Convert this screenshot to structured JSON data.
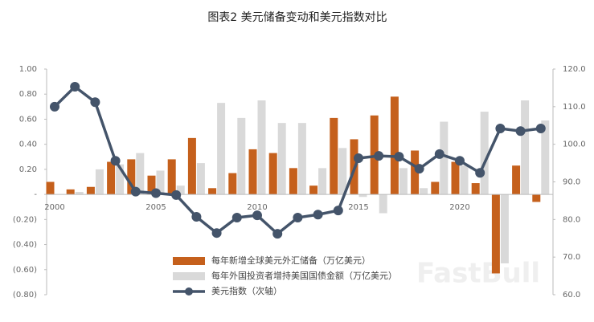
{
  "chart_data": {
    "type": "bar",
    "title": "图表2 美元储备变动和美元指数对比",
    "watermark": "FastBull",
    "categories": [
      "2000",
      null,
      null,
      null,
      null,
      "2005",
      null,
      null,
      null,
      null,
      "2010",
      null,
      null,
      null,
      null,
      "2015",
      null,
      null,
      null,
      null,
      "2020",
      null,
      null,
      null,
      null
    ],
    "series": [
      {
        "name": "每年新增全球美元外汇储备（万亿美元）",
        "type": "bar",
        "color": "#c5601c",
        "values": [
          0.1,
          0.04,
          0.06,
          0.26,
          0.28,
          0.15,
          0.28,
          0.45,
          0.05,
          0.17,
          0.36,
          0.33,
          0.21,
          0.07,
          0.61,
          0.44,
          0.63,
          0.78,
          0.35,
          0.1,
          0.26,
          0.09,
          -0.63,
          0.23,
          -0.06
        ]
      },
      {
        "name": "每年外国投资者增持美国国债金额（万亿美元）",
        "type": "bar",
        "color": "#d9d9d9",
        "values": [
          0,
          0.02,
          0.2,
          0.24,
          0.33,
          0.19,
          0.07,
          0.25,
          0.73,
          0.61,
          0.75,
          0.57,
          0.57,
          0.21,
          0.37,
          -0.02,
          -0.15,
          0.21,
          0.05,
          0.58,
          0.23,
          0.66,
          -0.55,
          0.75,
          0.59
        ]
      },
      {
        "name": "美元指数（次轴）",
        "type": "line",
        "axis": "y2",
        "color": "#44546a",
        "values": [
          110.0,
          115.3,
          111.2,
          95.6,
          87.4,
          87.0,
          86.5,
          80.7,
          76.4,
          80.5,
          81.1,
          76.2,
          80.5,
          81.3,
          82.4,
          96.3,
          96.9,
          96.7,
          93.5,
          97.4,
          95.6,
          92.4,
          104.2,
          103.5,
          104.2
        ]
      }
    ],
    "ylim": [
      -0.8,
      1.0
    ],
    "yticks": [
      {
        "value": 1.0,
        "label": "1.00"
      },
      {
        "value": 0.8,
        "label": "0.80"
      },
      {
        "value": 0.6,
        "label": "0.60"
      },
      {
        "value": 0.4,
        "label": "0.40"
      },
      {
        "value": 0.2,
        "label": "0.20"
      },
      {
        "value": 0,
        "label": "-"
      },
      {
        "value": -0.2,
        "label": "(0.20)"
      },
      {
        "value": -0.4,
        "label": "(0.40)"
      },
      {
        "value": -0.6,
        "label": "(0.60)"
      },
      {
        "value": -0.8,
        "label": "(0.80)"
      }
    ],
    "y2lim": [
      60,
      120
    ],
    "y2ticks": [
      {
        "value": 120,
        "label": "120.0"
      },
      {
        "value": 110,
        "label": "110.0"
      },
      {
        "value": 100,
        "label": "100.0"
      },
      {
        "value": 90,
        "label": "90.0"
      },
      {
        "value": 80,
        "label": "80.0"
      },
      {
        "value": 70,
        "label": "70.0"
      },
      {
        "value": 60,
        "label": "60.0"
      }
    ],
    "grid": false,
    "legend": "bottom"
  }
}
